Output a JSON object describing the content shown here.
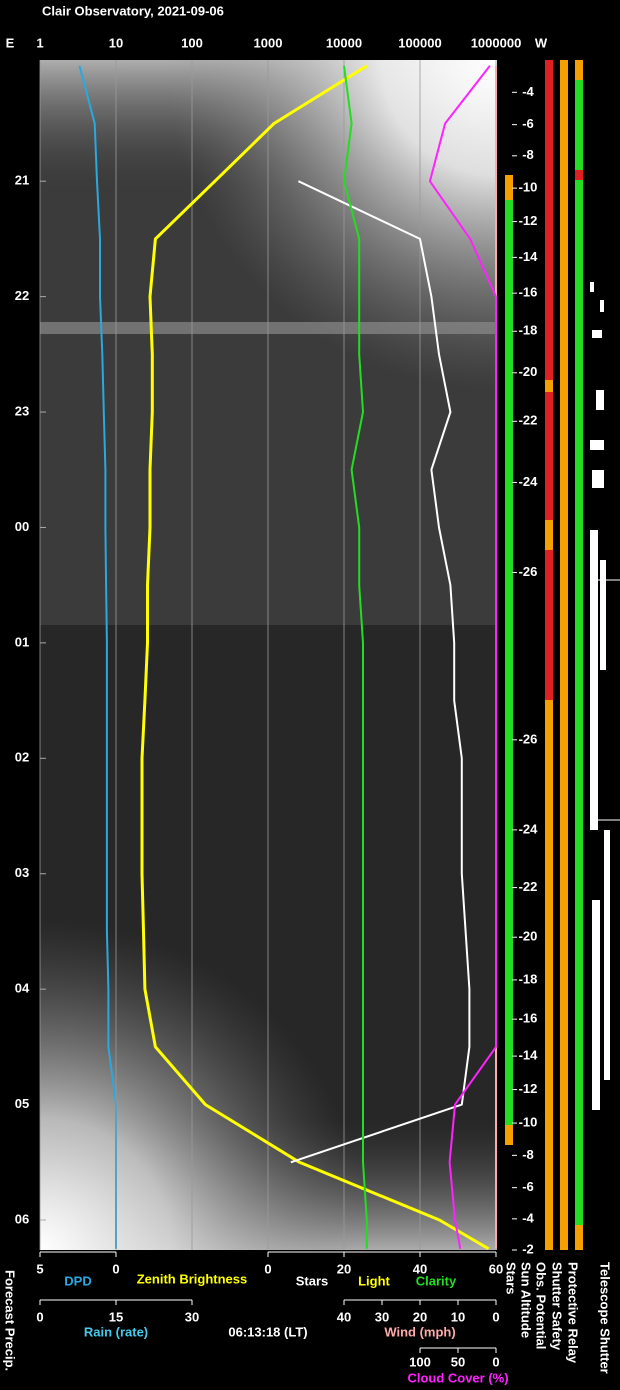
{
  "chart_data": {
    "type": "keogram",
    "title": "Clair Observatory, 2021-09-06",
    "east_label": "E",
    "west_label": "W",
    "time": "06:13:18 (LT)",
    "side_label": "Forecast Precip.",
    "ylim": [
      19.95,
      30.26
    ],
    "yticks": [
      21,
      22,
      23,
      {
        "value": 24,
        "label": "00"
      },
      {
        "value": 25,
        "label": "01"
      },
      {
        "value": 26,
        "label": "02"
      },
      {
        "value": 27,
        "label": "03"
      },
      {
        "value": 28,
        "label": "04"
      },
      {
        "value": 29,
        "label": "05"
      },
      {
        "value": 30,
        "label": "06"
      }
    ],
    "x": [
      20.0,
      20.5,
      21.0,
      21.5,
      22.0,
      22.5,
      23.0,
      23.5,
      24.0,
      24.5,
      25.0,
      25.5,
      26.0,
      26.5,
      27.0,
      27.5,
      28.0,
      28.5,
      29.0,
      29.5,
      30.0,
      30.25
    ],
    "axes": [
      {
        "xlim": [
          5,
          0
        ],
        "xticks": [
          5,
          0
        ],
        "series": [
          {
            "name": "DPD",
            "color": "#2aa8e0",
            "values": [
              2.4,
              1.4,
              1.25,
              1.05,
              1.05,
              0.9,
              0.8,
              0.7,
              0.7,
              0.65,
              0.6,
              0.6,
              0.6,
              0.6,
              0.6,
              0.6,
              0.5,
              0.5,
              0,
              0,
              0,
              0
            ]
          }
        ]
      },
      {
        "xlim": [
          1,
          1000000
        ],
        "xticks": [
          1,
          10,
          100,
          1000,
          10000,
          100000,
          1000000
        ],
        "log": true,
        "grid": true,
        "series": [
          {
            "name": "Zenith Brightness",
            "color": "#ffff00",
            "values": [
              20000,
              1200,
              200,
              33,
              28,
              30,
              30,
              28,
              28,
              26,
              26,
              24,
              22,
              22,
              22,
              23,
              24,
              33,
              150,
              2600,
              180000,
              800000
            ]
          }
        ]
      },
      {
        "xlim": [
          0,
          60
        ],
        "xticks": [
          0,
          20,
          40,
          60
        ],
        "series": [
          {
            "name": "Stars",
            "color": "#ffffff",
            "values": [
              null,
              null,
              8,
              40,
              43,
              45,
              48,
              43,
              45,
              48,
              49,
              49,
              51,
              51,
              51,
              52,
              53,
              53,
              51,
              6,
              null,
              null
            ]
          },
          {
            "name": "Light",
            "color": "#ffff00"
          },
          {
            "name": "Clarity",
            "color": "#22dd22",
            "values": [
              20,
              22,
              20,
              24,
              24,
              24,
              25,
              22,
              24,
              24,
              25,
              25,
              25,
              25,
              25,
              25,
              25,
              25,
              25,
              25,
              26,
              26
            ]
          }
        ]
      },
      {
        "xlim": [
          0,
          30
        ],
        "xticks": [
          0,
          15,
          30
        ],
        "series": [
          {
            "name": "Rain (rate)",
            "color": "#44ccee"
          }
        ]
      },
      {
        "xlim": [
          40,
          0
        ],
        "xticks": [
          40,
          30,
          20,
          10,
          0
        ],
        "series": [
          {
            "name": "Wind (mph)",
            "color": "#ffaaaa",
            "values": [
              0,
              0,
              0,
              0,
              0,
              0,
              0,
              0,
              0,
              0,
              0,
              0,
              0,
              0,
              0,
              0,
              0,
              0,
              0,
              0,
              0,
              0
            ]
          }
        ]
      },
      {
        "xlim": [
          100,
          0
        ],
        "xticks": [
          100,
          50,
          0
        ],
        "series": [
          {
            "name": "Cloud Cover (%)",
            "color": "#ff22ff",
            "values": [
              8,
              67,
              87,
              34,
              0,
              0,
              0,
              0,
              0,
              0,
              0,
              0,
              0,
              0,
              0,
              0,
              0,
              0,
              54,
              61,
              54,
              47
            ]
          }
        ]
      }
    ],
    "sun_altitude": {
      "x": [
        20.23,
        20.51,
        20.78,
        21.06,
        21.35,
        21.66,
        21.97,
        22.3,
        22.66,
        23.08,
        23.61,
        24.39,
        25.84,
        26.62,
        27.12,
        27.55,
        27.92,
        28.26,
        28.58,
        28.87,
        29.16,
        29.44,
        29.72,
        29.99,
        30.26
      ],
      "values": [
        -4,
        -6,
        -8,
        -10,
        -12,
        -14,
        -16,
        -18,
        -20,
        -22,
        -24,
        -26,
        -26,
        -24,
        -22,
        -20,
        -18,
        -16,
        -14,
        -12,
        -10,
        -8,
        -6,
        -4,
        -2
      ]
    },
    "status_columns": [
      "Stars",
      "Sun Altitude",
      "Obs. Potential",
      "Shutter Safety",
      "Protective Relay",
      "Telescope Shutter"
    ]
  }
}
